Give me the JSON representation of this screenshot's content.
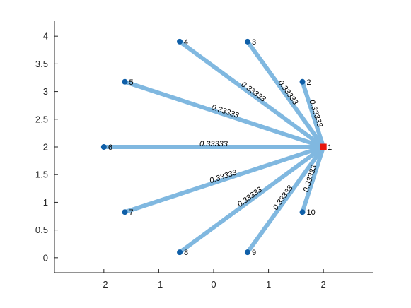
{
  "chart_data": {
    "type": "network-graph",
    "title": "",
    "xlabel": "",
    "ylabel": "",
    "xlim": [
      -2.9,
      2.9
    ],
    "ylim": [
      -0.27,
      4.27
    ],
    "xticks": [
      "-2",
      "-1",
      "0",
      "1",
      "2"
    ],
    "yticks": [
      "0",
      "0.5",
      "1",
      "1.5",
      "2",
      "2.5",
      "3",
      "3.5",
      "4"
    ],
    "xtick_values": [
      -2,
      -1,
      0,
      1,
      2
    ],
    "ytick_values": [
      0,
      0.5,
      1,
      1.5,
      2,
      2.5,
      3,
      3.5,
      4
    ],
    "grid": false,
    "colors": {
      "edge": "#80b8e0",
      "node": "#0f5fa8",
      "highlight_node": "#e8160c",
      "axis": "#262626"
    },
    "nodes": [
      {
        "id": "1",
        "x": 2.0,
        "y": 2.0,
        "highlight": true
      },
      {
        "id": "2",
        "x": 1.618,
        "y": 3.176
      },
      {
        "id": "3",
        "x": 0.618,
        "y": 3.902
      },
      {
        "id": "4",
        "x": -0.618,
        "y": 3.902
      },
      {
        "id": "5",
        "x": -1.618,
        "y": 3.176
      },
      {
        "id": "6",
        "x": -2.0,
        "y": 2.0
      },
      {
        "id": "7",
        "x": -1.618,
        "y": 0.824
      },
      {
        "id": "8",
        "x": -0.618,
        "y": 0.098
      },
      {
        "id": "9",
        "x": 0.618,
        "y": 0.098
      },
      {
        "id": "10",
        "x": 1.618,
        "y": 0.824
      }
    ],
    "edges": [
      {
        "source": "1",
        "target": "2",
        "weight": "0.33333"
      },
      {
        "source": "1",
        "target": "3",
        "weight": "0.33333"
      },
      {
        "source": "1",
        "target": "4",
        "weight": "0.33333"
      },
      {
        "source": "1",
        "target": "5",
        "weight": "0.33333"
      },
      {
        "source": "1",
        "target": "6",
        "weight": "0.33333"
      },
      {
        "source": "1",
        "target": "7",
        "weight": "0.33333"
      },
      {
        "source": "1",
        "target": "8",
        "weight": "0.33333"
      },
      {
        "source": "1",
        "target": "9",
        "weight": "0.33333"
      },
      {
        "source": "1",
        "target": "10",
        "weight": "0.33333"
      }
    ]
  }
}
